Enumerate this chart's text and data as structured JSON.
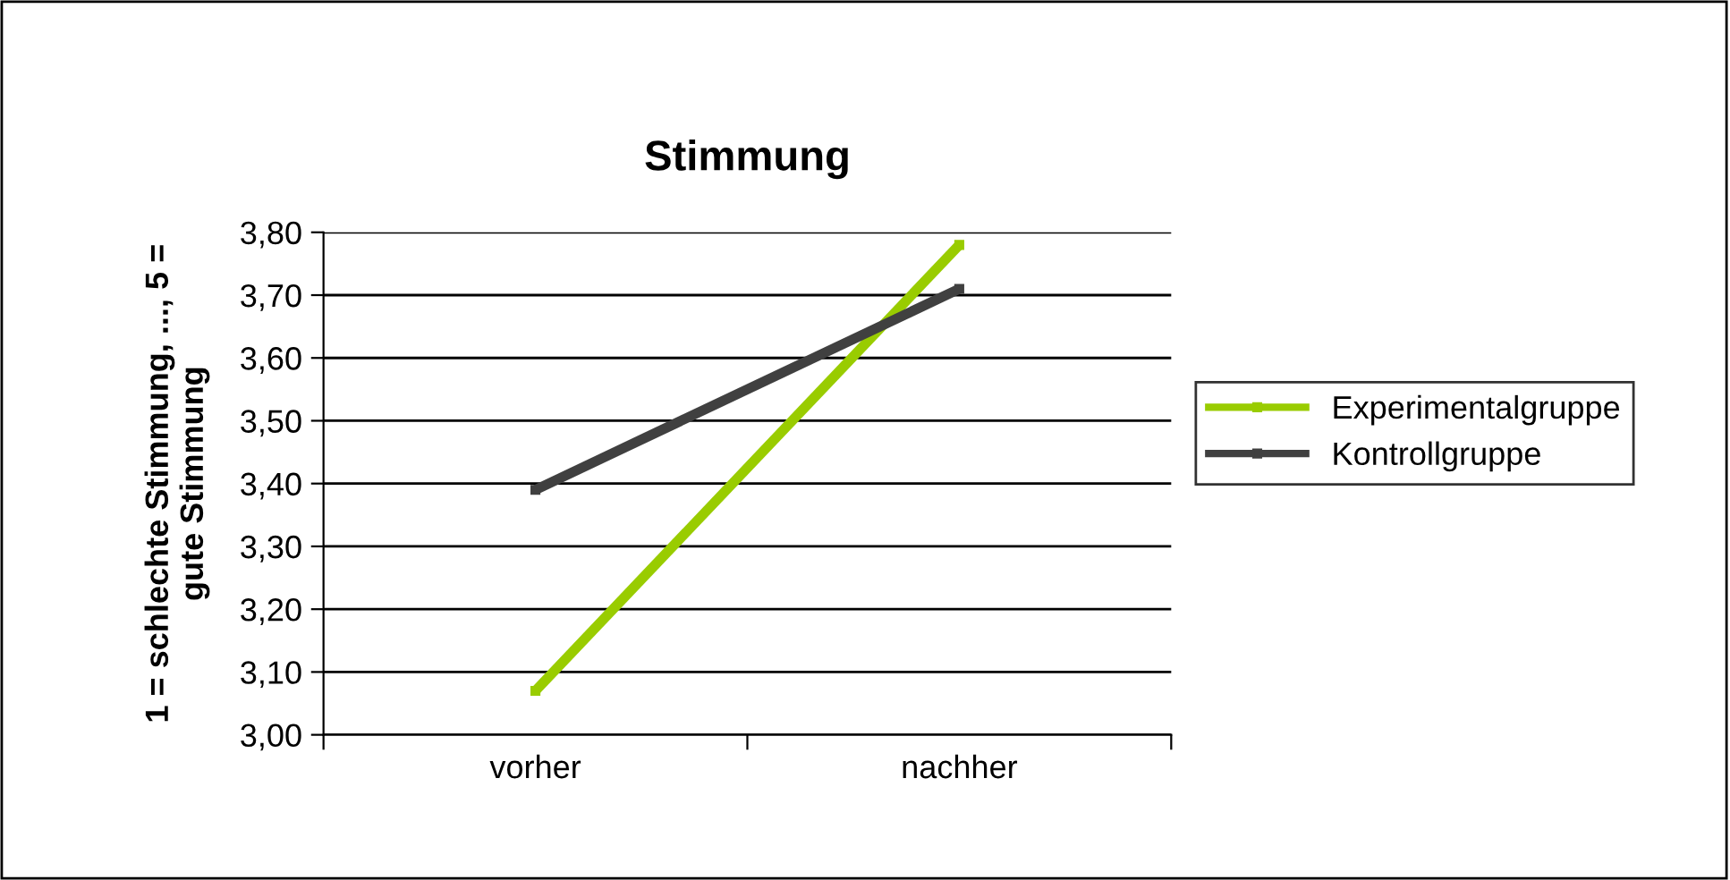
{
  "chart_data": {
    "type": "line",
    "title": "Stimmung",
    "ylabel": "1 = schlechte Stimmung, ..., 5 =\ngute Stimmung",
    "categories": [
      "vorher",
      "nachher"
    ],
    "series": [
      {
        "name": "Experimentalgruppe",
        "color": "#99cc00",
        "values": [
          3.07,
          3.78
        ]
      },
      {
        "name": "Kontrollgruppe",
        "color": "#404040",
        "values": [
          3.39,
          3.71
        ]
      }
    ],
    "ylim": [
      3.0,
      3.8
    ],
    "yticks": [
      {
        "value": 3.0,
        "label": "3,00"
      },
      {
        "value": 3.1,
        "label": "3,10"
      },
      {
        "value": 3.2,
        "label": "3,20"
      },
      {
        "value": 3.3,
        "label": "3,30"
      },
      {
        "value": 3.4,
        "label": "3,40"
      },
      {
        "value": 3.5,
        "label": "3,50"
      },
      {
        "value": 3.6,
        "label": "3,60"
      },
      {
        "value": 3.7,
        "label": "3,70"
      },
      {
        "value": 3.8,
        "label": "3,80"
      }
    ],
    "grid": "y",
    "legend": "right",
    "marker": "square",
    "line_style": "solid"
  }
}
